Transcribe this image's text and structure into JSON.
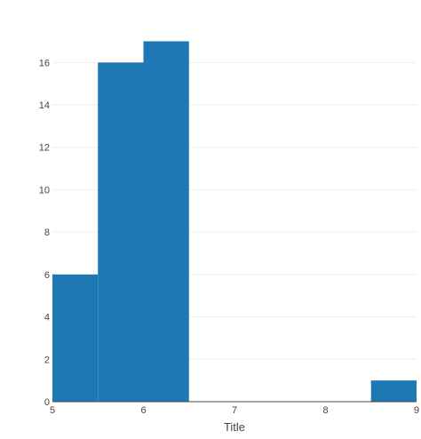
{
  "chart_data": {
    "type": "bar",
    "subtype": "histogram",
    "bins": [
      {
        "x0": 5.0,
        "x1": 5.5,
        "count": 6
      },
      {
        "x0": 5.5,
        "x1": 6.0,
        "count": 16
      },
      {
        "x0": 6.0,
        "x1": 6.5,
        "count": 17
      },
      {
        "x0": 6.5,
        "x1": 7.0,
        "count": 0
      },
      {
        "x0": 7.0,
        "x1": 7.5,
        "count": 0
      },
      {
        "x0": 7.5,
        "x1": 8.0,
        "count": 0
      },
      {
        "x0": 8.0,
        "x1": 8.5,
        "count": 0
      },
      {
        "x0": 8.5,
        "x1": 9.0,
        "count": 1
      }
    ],
    "title": "",
    "xlabel": "Title",
    "ylabel": "",
    "xlim": [
      5,
      9
    ],
    "ylim": [
      0,
      17.9
    ],
    "xticks": [
      "5",
      "6",
      "7",
      "8",
      "9"
    ],
    "yticks": [
      "0",
      "2",
      "4",
      "6",
      "8",
      "10",
      "12",
      "14",
      "16"
    ],
    "grid": true,
    "legend": "none",
    "colors": {
      "bar": "#1f77b4",
      "grid": "#eeeeee",
      "axis": "#444444"
    }
  }
}
